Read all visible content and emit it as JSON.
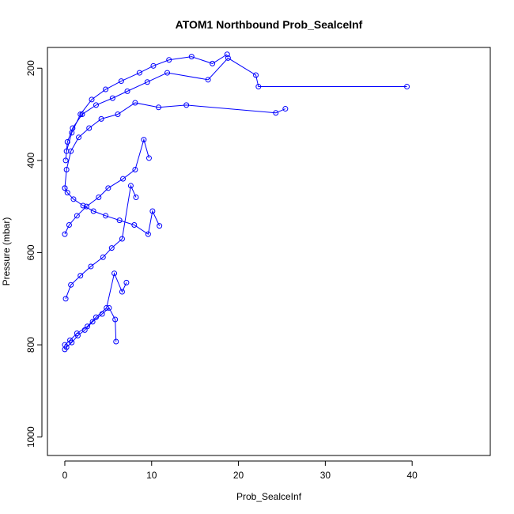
{
  "chart_data": {
    "type": "scatter",
    "title": "ATOM1 Northbound Prob_SealceInf",
    "xlabel": "Prob_SealceInf",
    "ylabel": "Pressure (mbar)",
    "xlim": [
      -2,
      49
    ],
    "ylim": [
      1040,
      155
    ],
    "y_inverted": true,
    "x_ticks": [
      0,
      10,
      20,
      30,
      40
    ],
    "y_ticks": [
      200,
      400,
      600,
      800,
      1000
    ],
    "style": {
      "marker": "open-circle",
      "connected": true,
      "color": "#0000ff"
    },
    "grid": false,
    "series": [
      {
        "x": [
          39.4,
          22.3,
          22.0,
          18.8,
          16.5,
          11.8,
          9.5,
          7.2,
          5.5,
          3.6,
          2.0,
          0.9,
          0.3,
          0.1
        ],
        "y": [
          240,
          240,
          215,
          178,
          225,
          210,
          230,
          250,
          265,
          280,
          300,
          330,
          360,
          400
        ]
      },
      {
        "x": [
          25.4,
          24.3,
          14.0,
          10.8,
          8.1,
          6.1,
          4.2,
          2.8,
          1.6,
          0.7,
          0.2,
          0.0
        ],
        "y": [
          288,
          297,
          280,
          285,
          275,
          300,
          310,
          330,
          350,
          380,
          420,
          460
        ]
      },
      {
        "x": [
          18.7,
          17.0,
          14.6,
          12.0,
          10.2,
          8.6,
          6.5,
          4.7,
          3.1,
          1.8,
          0.8,
          0.2
        ],
        "y": [
          170,
          190,
          175,
          182,
          195,
          210,
          228,
          246,
          268,
          300,
          340,
          380
        ]
      },
      {
        "x": [
          10.9,
          10.1,
          9.6,
          8.0,
          6.3,
          4.7,
          3.3,
          2.1,
          1.0,
          0.3,
          0.0
        ],
        "y": [
          542,
          510,
          560,
          540,
          530,
          520,
          510,
          498,
          484,
          470,
          460
        ]
      },
      {
        "x": [
          9.7,
          9.1,
          8.1,
          6.7,
          5.0,
          3.9,
          2.5,
          1.4,
          0.5,
          0.0
        ],
        "y": [
          395,
          355,
          420,
          440,
          460,
          480,
          500,
          520,
          540,
          560
        ]
      },
      {
        "x": [
          8.2,
          7.6,
          6.6,
          5.4,
          4.4,
          3.0,
          1.8,
          0.7,
          0.1
        ],
        "y": [
          480,
          455,
          570,
          590,
          610,
          630,
          650,
          670,
          700
        ]
      },
      {
        "x": [
          7.1,
          6.6,
          5.7,
          4.8,
          3.6,
          2.6,
          1.4,
          0.6,
          0.0
        ],
        "y": [
          665,
          685,
          645,
          720,
          740,
          760,
          775,
          790,
          800
        ]
      },
      {
        "x": [
          5.9,
          5.8,
          5.1,
          4.3,
          3.2,
          2.3,
          1.5,
          0.8,
          0.2,
          0.0
        ],
        "y": [
          793,
          745,
          720,
          733,
          750,
          768,
          780,
          795,
          805,
          810
        ]
      }
    ]
  }
}
